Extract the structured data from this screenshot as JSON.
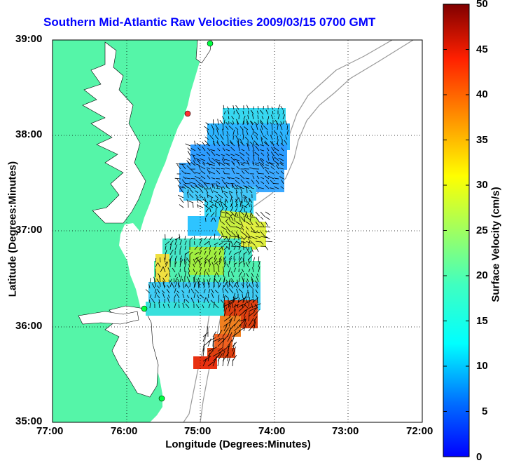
{
  "title": "Southern Mid-Atlantic Raw Velocities 2009/03/15 0700 GMT",
  "xaxis": {
    "label": "Longitude (Degrees:Minutes)",
    "ticks": [
      "77:00",
      "76:00",
      "75:00",
      "74:00",
      "73:00",
      "72:00"
    ]
  },
  "yaxis": {
    "label": "Latitude (Degrees:Minutes)",
    "ticks": [
      "39:00",
      "38:00",
      "37:00",
      "36:00",
      "35:00"
    ]
  },
  "colorbar": {
    "label": "Surface Velocity (cm/s)",
    "ticks": [
      "50",
      "45",
      "40",
      "35",
      "30",
      "25",
      "20",
      "15",
      "10",
      "5",
      "0"
    ],
    "min": 0,
    "max": 50
  },
  "colors": {
    "land": "#55f5a8",
    "title": "#0000ff",
    "grid": "#000000",
    "bathymetry": "#999999"
  }
}
